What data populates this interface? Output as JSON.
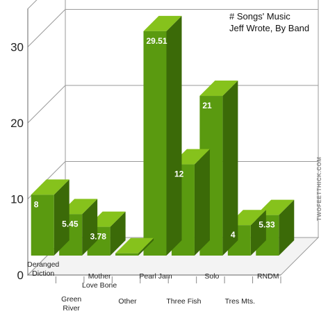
{
  "chart_data": {
    "type": "bar",
    "title_lines": [
      "# Songs' Music",
      "Jeff Wrote, By Band"
    ],
    "categories": [
      [
        "Deranged",
        "Diction"
      ],
      [
        "Green",
        "River"
      ],
      [
        "Mother",
        "Love Bone"
      ],
      [
        "Other"
      ],
      [
        "Pearl Jam"
      ],
      [
        "Three Fish"
      ],
      [
        "Solo"
      ],
      [
        "Tres Mts."
      ],
      [
        "RNDM"
      ]
    ],
    "values": [
      8,
      5.45,
      3.78,
      0.3,
      29.51,
      12,
      21,
      4,
      5.33
    ],
    "data_labels": [
      "8",
      "5.45",
      "3.78",
      "",
      "29.51",
      "12",
      "21",
      "4",
      "5.33"
    ],
    "yticks": [
      "0",
      "10",
      "20",
      "30"
    ],
    "ylim": [
      0,
      35
    ],
    "grid": true,
    "watermark": "TWOFEETTHICK.COM",
    "colors": {
      "bar_front": "#5a9a10",
      "bar_top": "#86c21c",
      "bar_side": "#3b6a08",
      "grid": "#9a9a9a",
      "floor": "#f3f3f3"
    }
  }
}
